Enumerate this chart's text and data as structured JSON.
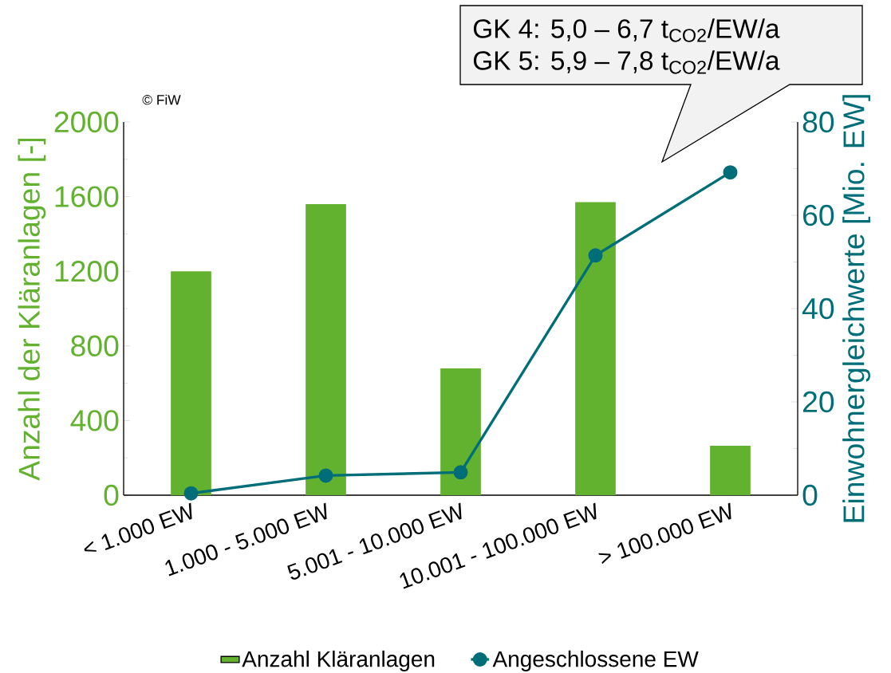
{
  "chart_data": {
    "type": "bar",
    "categories": [
      "< 1.000 EW",
      "1.000 - 5.000 EW",
      "5.001 - 10.000 EW",
      "10.001 - 100.000 EW",
      "> 100.000 EW"
    ],
    "series": [
      {
        "name": "Anzahl Kläranlagen",
        "color": "#63b22f",
        "values": [
          1200,
          1560,
          680,
          1570,
          265
        ]
      },
      {
        "name": "Angeschlossene EW",
        "type": "line",
        "axis": "y2",
        "marker": "circle",
        "color": "#006e78",
        "values": [
          0.4,
          4.2,
          4.9,
          51.4,
          69.2
        ]
      }
    ],
    "ylabel": "Anzahl der Kläranlagen [-]",
    "y2label": "Einwohnergleichwerte [Mio. EW]",
    "ylim": [
      0,
      2000
    ],
    "yticks": [
      0,
      400,
      800,
      1200,
      1600,
      2000
    ],
    "y2lim": [
      0,
      80
    ],
    "y2ticks": [
      0,
      20,
      40,
      60,
      80
    ],
    "legend": "bottom",
    "annotations": [
      "GK 4: 5,0 – 6,7   t$_{CO2}$/EW/a",
      "GK 5: 5,9 – 7,8   t$_{CO2}$/EW/a",
      "© FiW"
    ]
  }
}
